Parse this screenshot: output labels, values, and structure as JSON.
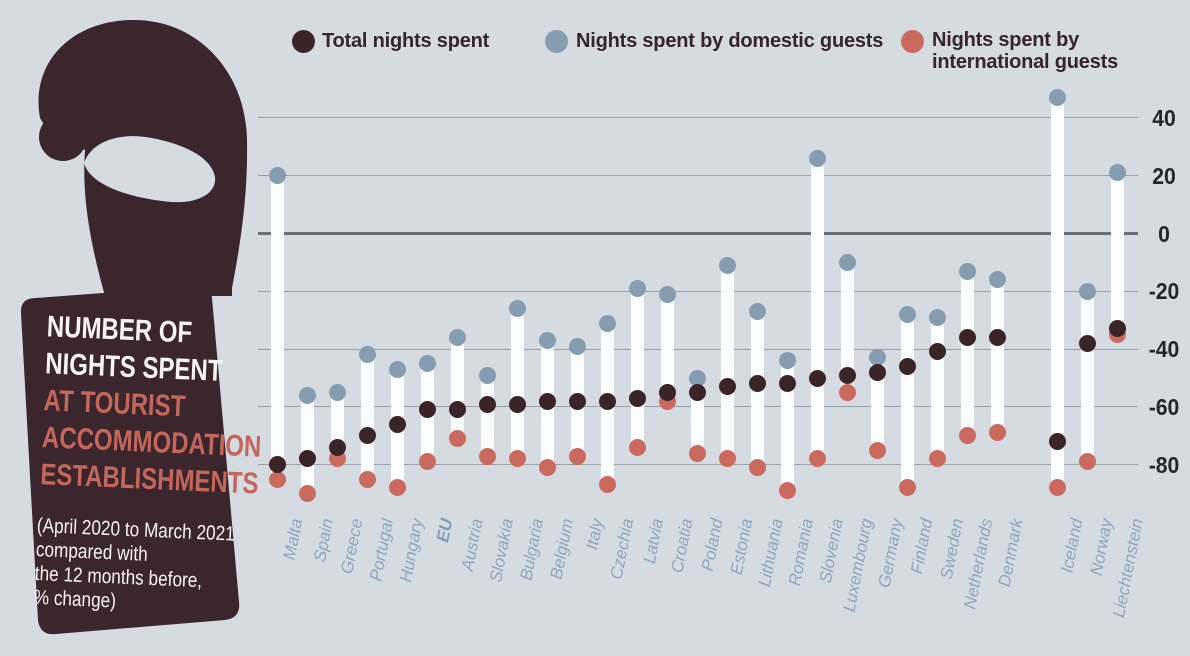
{
  "title": {
    "line1": "NUMBER OF",
    "line2": "NIGHTS SPENT",
    "line3": "AT TOURIST",
    "line4": "ACCOMMODATION",
    "line5": "ESTABLISHMENTS",
    "sub1": "(April 2020 to March 2021",
    "sub2": "compared with",
    "sub3": "the 12 months before,",
    "sub4": "% change)"
  },
  "legend": {
    "total": "Total nights spent",
    "domestic": "Nights spent by domestic guests",
    "international_line1": "Nights spent by",
    "international_line2": "international guests"
  },
  "colors": {
    "background": "#d5dbe1",
    "panel": "#3a262c",
    "panel_accent_text": "#c3675c",
    "panel_text": "#f8f5f3",
    "total_dot": "#3b2428",
    "domestic_dot": "#849db1",
    "international_dot": "#ca6a5f",
    "bar": "#fcfdfe",
    "gridline": "#9aa0a6",
    "zero_line": "#6b7077",
    "axis_label": "#26262a",
    "country_label": "#8ca6bf"
  },
  "chart_data": {
    "type": "dumbbell",
    "unit": "% change",
    "title": "Number of nights spent at tourist accommodation establishments (April 2020 to March 2021 compared with the 12 months before, % change)",
    "legend_position": "top",
    "grid": true,
    "y_ticks": [
      40,
      20,
      0,
      -20,
      -40,
      -60,
      -80
    ],
    "ylim": [
      -95,
      52
    ],
    "series_keys": [
      "total",
      "domestic",
      "international"
    ],
    "series_labels": {
      "total": "Total nights spent",
      "domestic": "Nights spent by domestic guests",
      "international": "Nights spent by international guests"
    },
    "countries": [
      {
        "name": "Malta",
        "group": "eu",
        "total": -80,
        "domestic": 20,
        "international": -85
      },
      {
        "name": "Spain",
        "group": "eu",
        "total": -78,
        "domestic": -56,
        "international": -90
      },
      {
        "name": "Greece",
        "group": "eu",
        "total": -74,
        "domestic": -55,
        "international": -78
      },
      {
        "name": "Portugal",
        "group": "eu",
        "total": -70,
        "domestic": -42,
        "international": -85
      },
      {
        "name": "Hungary",
        "group": "eu",
        "total": -66,
        "domestic": -47,
        "international": -88
      },
      {
        "name": "EU",
        "group": "eu",
        "bold": true,
        "total": -61,
        "domestic": -45,
        "international": -79
      },
      {
        "name": "Austria",
        "group": "eu",
        "total": -61,
        "domestic": -36,
        "international": -71
      },
      {
        "name": "Slovakia",
        "group": "eu",
        "total": -59,
        "domestic": -49,
        "international": -77
      },
      {
        "name": "Bulgaria",
        "group": "eu",
        "total": -59,
        "domestic": -26,
        "international": -78
      },
      {
        "name": "Belgium",
        "group": "eu",
        "total": -58,
        "domestic": -37,
        "international": -81
      },
      {
        "name": "Italy",
        "group": "eu",
        "total": -58,
        "domestic": -39,
        "international": -77
      },
      {
        "name": "Czechia",
        "group": "eu",
        "total": -58,
        "domestic": -31,
        "international": -87
      },
      {
        "name": "Latvia",
        "group": "eu",
        "total": -57,
        "domestic": -19,
        "international": -74
      },
      {
        "name": "Croatia",
        "group": "eu",
        "total": -55,
        "domestic": -21,
        "international": -58
      },
      {
        "name": "Poland",
        "group": "eu",
        "total": -55,
        "domestic": -50,
        "international": -76
      },
      {
        "name": "Estonia",
        "group": "eu",
        "total": -53,
        "domestic": -11,
        "international": -78
      },
      {
        "name": "Lithuania",
        "group": "eu",
        "total": -52,
        "domestic": -27,
        "international": -81
      },
      {
        "name": "Romania",
        "group": "eu",
        "total": -52,
        "domestic": -44,
        "international": -89
      },
      {
        "name": "Slovenia",
        "group": "eu",
        "total": -50,
        "domestic": 26,
        "international": -78
      },
      {
        "name": "Luxembourg",
        "group": "eu",
        "total": -49,
        "domestic": -10,
        "international": -55
      },
      {
        "name": "Germany",
        "group": "eu",
        "total": -48,
        "domestic": -43,
        "international": -75
      },
      {
        "name": "Finland",
        "group": "eu",
        "total": -46,
        "domestic": -28,
        "international": -88
      },
      {
        "name": "Sweden",
        "group": "eu",
        "total": -41,
        "domestic": -29,
        "international": -78
      },
      {
        "name": "Netherlands",
        "group": "eu",
        "total": -36,
        "domestic": -13,
        "international": -70
      },
      {
        "name": "Denmark",
        "group": "eu",
        "total": -36,
        "domestic": -16,
        "international": -69
      },
      {
        "name": "Iceland",
        "group": "efta",
        "total": -72,
        "domestic": 47,
        "international": -88
      },
      {
        "name": "Norway",
        "group": "efta",
        "total": -38,
        "domestic": -20,
        "international": -79
      },
      {
        "name": "Liechtenstein",
        "group": "efta",
        "total": -33,
        "domestic": 21,
        "international": -35
      }
    ]
  }
}
